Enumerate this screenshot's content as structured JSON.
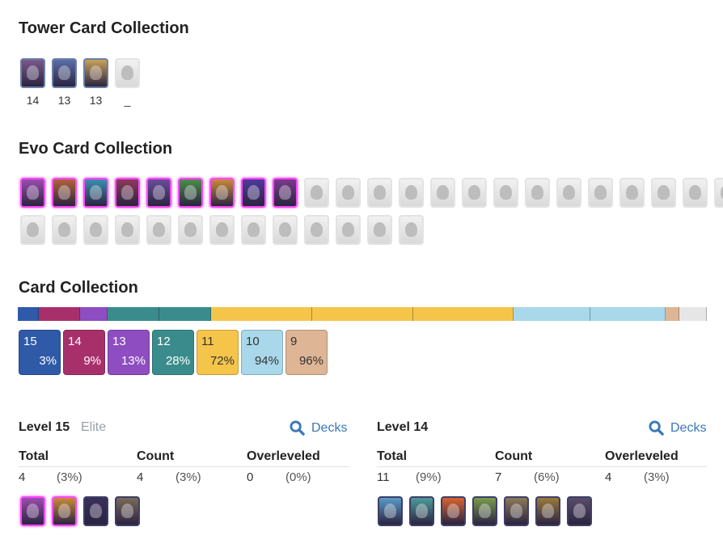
{
  "tower": {
    "title": "Tower Card Collection",
    "cards": [
      {
        "icon": "tower-princess-icon",
        "level": "14",
        "style": "tower",
        "color": "#7a5a8c"
      },
      {
        "icon": "cannoneer-icon",
        "level": "13",
        "style": "tower",
        "color": "#5a6fa8"
      },
      {
        "icon": "dagger-duchess-icon",
        "level": "13",
        "style": "tower",
        "color": "#c9a15a"
      },
      {
        "icon": "royal-chef-icon",
        "level": "_",
        "style": "gray",
        "color": "#d9d9d9"
      }
    ]
  },
  "evo": {
    "title": "Evo Card Collection",
    "row1": [
      {
        "icon": "evo-archers-icon",
        "style": "evo",
        "color": "#9b4db0"
      },
      {
        "icon": "evo-barbarians-icon",
        "style": "evo",
        "color": "#b0633a"
      },
      {
        "icon": "evo-royal-giant-icon",
        "style": "evo",
        "color": "#3a8fb0"
      },
      {
        "icon": "evo-firecracker-icon",
        "style": "evo",
        "color": "#8c3a5a"
      },
      {
        "icon": "evo-royal-recruits-icon",
        "style": "evo",
        "color": "#6a4d9b"
      },
      {
        "icon": "evo-goblin-giant-icon",
        "style": "evo",
        "color": "#4d8c4d"
      },
      {
        "icon": "evo-dart-goblin-icon",
        "style": "evo",
        "color": "#c98a3a"
      },
      {
        "icon": "evo-executioner-icon",
        "style": "evo",
        "color": "#4d3a9b"
      },
      {
        "icon": "evo-witch-icon",
        "style": "evo",
        "color": "#7a3a8c"
      },
      {
        "icon": "locked-evo-1-icon",
        "style": "gray",
        "color": "#d9d9d9"
      },
      {
        "icon": "locked-evo-2-icon",
        "style": "gray",
        "color": "#d9d9d9"
      },
      {
        "icon": "locked-evo-3-icon",
        "style": "gray",
        "color": "#d9d9d9"
      },
      {
        "icon": "locked-evo-4-icon",
        "style": "gray",
        "color": "#d9d9d9"
      },
      {
        "icon": "locked-evo-5-icon",
        "style": "gray",
        "color": "#d9d9d9"
      },
      {
        "icon": "locked-evo-6-icon",
        "style": "gray",
        "color": "#d9d9d9"
      },
      {
        "icon": "locked-evo-7-icon",
        "style": "gray",
        "color": "#d9d9d9"
      },
      {
        "icon": "locked-evo-8-icon",
        "style": "gray",
        "color": "#d9d9d9"
      },
      {
        "icon": "locked-evo-9-icon",
        "style": "gray",
        "color": "#d9d9d9"
      },
      {
        "icon": "locked-evo-10-icon",
        "style": "gray",
        "color": "#d9d9d9"
      },
      {
        "icon": "locked-evo-11-icon",
        "style": "gray",
        "color": "#d9d9d9"
      },
      {
        "icon": "locked-evo-12-icon",
        "style": "gray",
        "color": "#d9d9d9"
      },
      {
        "icon": "locked-evo-13-icon",
        "style": "gray",
        "color": "#d9d9d9"
      },
      {
        "icon": "locked-evo-14-icon",
        "style": "gray",
        "color": "#d9d9d9"
      }
    ],
    "row2": [
      {
        "icon": "locked-evo-15-icon",
        "style": "gray",
        "color": "#d9d9d9"
      },
      {
        "icon": "locked-evo-16-icon",
        "style": "gray",
        "color": "#d9d9d9"
      },
      {
        "icon": "locked-evo-17-icon",
        "style": "gray",
        "color": "#d9d9d9"
      },
      {
        "icon": "locked-evo-18-icon",
        "style": "gray",
        "color": "#d9d9d9"
      },
      {
        "icon": "locked-evo-19-icon",
        "style": "gray",
        "color": "#d9d9d9"
      },
      {
        "icon": "locked-evo-20-icon",
        "style": "gray",
        "color": "#d9d9d9"
      },
      {
        "icon": "locked-evo-21-icon",
        "style": "gray",
        "color": "#d9d9d9"
      },
      {
        "icon": "locked-evo-22-icon",
        "style": "gray",
        "color": "#d9d9d9"
      },
      {
        "icon": "locked-evo-23-icon",
        "style": "gray",
        "color": "#d9d9d9"
      },
      {
        "icon": "locked-evo-24-icon",
        "style": "gray",
        "color": "#d9d9d9"
      },
      {
        "icon": "locked-evo-25-icon",
        "style": "gray",
        "color": "#d9d9d9"
      },
      {
        "icon": "locked-evo-26-icon",
        "style": "gray",
        "color": "#d9d9d9"
      },
      {
        "icon": "locked-evo-27-icon",
        "style": "gray",
        "color": "#d9d9d9"
      }
    ]
  },
  "collection": {
    "title": "Card Collection",
    "bar_segments": [
      {
        "level": "15",
        "fraction": 0.03,
        "color": "#2f5aa8",
        "ticks": 0
      },
      {
        "level": "14",
        "fraction": 0.06,
        "color": "#a8306a",
        "ticks": 0
      },
      {
        "level": "13",
        "fraction": 0.04,
        "color": "#8e4dc0",
        "ticks": 0
      },
      {
        "level": "12",
        "fraction": 0.15,
        "color": "#3a8c8c",
        "ticks": 1
      },
      {
        "level": "11",
        "fraction": 0.44,
        "color": "#f5c54a",
        "ticks": 2
      },
      {
        "level": "10",
        "fraction": 0.22,
        "color": "#a8d8ea",
        "ticks": 1
      },
      {
        "level": "9",
        "fraction": 0.02,
        "color": "#deb595",
        "ticks": 0
      },
      {
        "level": "rest",
        "fraction": 0.04,
        "color": "#e6e6e6",
        "ticks": 0
      }
    ],
    "boxes": [
      {
        "level": "15",
        "pct": "3%",
        "color": "#2f5aa8",
        "text": "#ffffff"
      },
      {
        "level": "14",
        "pct": "9%",
        "color": "#a8306a",
        "text": "#ffffff"
      },
      {
        "level": "13",
        "pct": "13%",
        "color": "#8e4dc0",
        "text": "#ffffff"
      },
      {
        "level": "12",
        "pct": "28%",
        "color": "#3a8c8c",
        "text": "#ffffff"
      },
      {
        "level": "11",
        "pct": "72%",
        "color": "#f5c54a",
        "text": "#333333"
      },
      {
        "level": "10",
        "pct": "94%",
        "color": "#a8d8ea",
        "text": "#333333"
      },
      {
        "level": "9",
        "pct": "96%",
        "color": "#deb595",
        "text": "#333333"
      }
    ]
  },
  "level15": {
    "title": "Level 15",
    "subtitle": "Elite",
    "decks_label": "Decks",
    "headers": {
      "total": "Total",
      "count": "Count",
      "overleveled": "Overleveled"
    },
    "total": "4",
    "total_pct": "(3%)",
    "count": "4",
    "count_pct": "(3%)",
    "over": "0",
    "over_pct": "(0%)",
    "cards": [
      {
        "icon": "evo-archers-icon",
        "style": "evo",
        "color": "#9b4db0"
      },
      {
        "icon": "evo-royal-recruits-icon",
        "style": "evo",
        "color": "#c98a3a"
      },
      {
        "icon": "pekka-icon",
        "style": "dark",
        "color": "#3a2f5a"
      },
      {
        "icon": "rocket-icon",
        "style": "dark",
        "color": "#7a6a5a"
      }
    ]
  },
  "level14": {
    "title": "Level 14",
    "decks_label": "Decks",
    "headers": {
      "total": "Total",
      "count": "Count",
      "overleveled": "Overleveled"
    },
    "total": "11",
    "total_pct": "(9%)",
    "count": "7",
    "count_pct": "(6%)",
    "over": "4",
    "over_pct": "(3%)",
    "cards": [
      {
        "icon": "ice-wizard-icon",
        "style": "dark",
        "color": "#5a9bc9"
      },
      {
        "icon": "ice-spirit-icon",
        "style": "dark",
        "color": "#4d9b9b"
      },
      {
        "icon": "fireball-icon",
        "style": "dark",
        "color": "#d9632f"
      },
      {
        "icon": "goblin-gang-icon",
        "style": "dark",
        "color": "#7a9b4d"
      },
      {
        "icon": "giant-snowball-icon",
        "style": "dark",
        "color": "#8c7a5a"
      },
      {
        "icon": "prince-icon",
        "style": "dark",
        "color": "#9b7a3a"
      },
      {
        "icon": "mega-knight-icon",
        "style": "dark",
        "color": "#5a4d6a"
      }
    ]
  }
}
